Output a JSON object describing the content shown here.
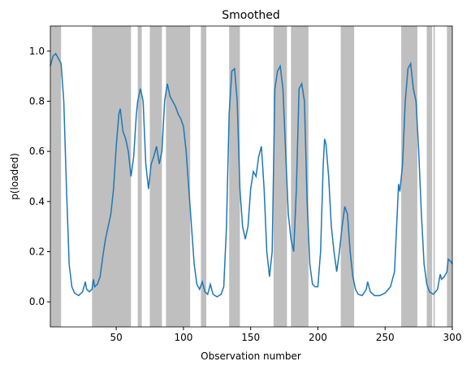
{
  "chart_data": {
    "type": "line",
    "title": "Smoothed",
    "xlabel": "Observation number",
    "ylabel": "p(loaded)",
    "xlim": [
      1,
      300
    ],
    "ylim": [
      -0.1,
      1.1
    ],
    "xticks": [
      50,
      100,
      150,
      200,
      250,
      300
    ],
    "yticks": [
      {
        "value": 0,
        "label": "0.0"
      },
      0.2,
      0.4,
      0.6,
      0.8,
      {
        "value": 1,
        "label": "1.0"
      }
    ],
    "span_color": "#bfbfbf",
    "spans": [
      [
        1,
        9
      ],
      [
        32,
        61
      ],
      [
        66,
        69
      ],
      [
        75,
        84
      ],
      [
        87,
        105
      ],
      [
        113,
        117
      ],
      [
        134,
        142
      ],
      [
        167,
        177
      ],
      [
        180,
        193
      ],
      [
        217,
        227
      ],
      [
        262,
        274
      ],
      [
        281,
        285
      ],
      [
        286,
        287
      ],
      [
        296,
        300
      ]
    ],
    "series": [
      {
        "color": "#1f77b4",
        "x": [
          1,
          3,
          5,
          7,
          9,
          11,
          13,
          15,
          17,
          19,
          22,
          25,
          27,
          28,
          30,
          32,
          33,
          34,
          36,
          38,
          40,
          42,
          44,
          46,
          48,
          50,
          52,
          53,
          55,
          57,
          59,
          61,
          63,
          65,
          66,
          68,
          70,
          72,
          74,
          76,
          78,
          80,
          82,
          84,
          86,
          88,
          90,
          92,
          94,
          96,
          98,
          100,
          102,
          104,
          106,
          108,
          110,
          112,
          114,
          116,
          118,
          120,
          122,
          125,
          128,
          130,
          132,
          134,
          136,
          138,
          140,
          142,
          144,
          146,
          148,
          150,
          152,
          154,
          156,
          158,
          160,
          162,
          164,
          166,
          168,
          170,
          172,
          174,
          176,
          178,
          180,
          182,
          184,
          186,
          188,
          190,
          192,
          194,
          196,
          198,
          200,
          202,
          204,
          205,
          206,
          208,
          210,
          212,
          214,
          216,
          218,
          220,
          222,
          224,
          226,
          228,
          230,
          233,
          236,
          237,
          239,
          242,
          246,
          250,
          254,
          257,
          259,
          260,
          261,
          263,
          265,
          267,
          269,
          271,
          273,
          275,
          277,
          279,
          281,
          283,
          286,
          289,
          291,
          292,
          294,
          296,
          297,
          299,
          300
        ],
        "values": [
          0.94,
          0.98,
          0.99,
          0.97,
          0.95,
          0.8,
          0.45,
          0.15,
          0.06,
          0.035,
          0.025,
          0.04,
          0.08,
          0.05,
          0.04,
          0.05,
          0.09,
          0.06,
          0.07,
          0.1,
          0.18,
          0.25,
          0.3,
          0.35,
          0.45,
          0.62,
          0.75,
          0.77,
          0.68,
          0.65,
          0.6,
          0.5,
          0.58,
          0.75,
          0.8,
          0.85,
          0.8,
          0.55,
          0.45,
          0.55,
          0.58,
          0.62,
          0.55,
          0.6,
          0.8,
          0.87,
          0.82,
          0.8,
          0.78,
          0.75,
          0.73,
          0.7,
          0.6,
          0.45,
          0.3,
          0.15,
          0.07,
          0.05,
          0.08,
          0.04,
          0.03,
          0.07,
          0.03,
          0.02,
          0.03,
          0.06,
          0.3,
          0.75,
          0.92,
          0.93,
          0.8,
          0.45,
          0.3,
          0.25,
          0.3,
          0.45,
          0.52,
          0.5,
          0.58,
          0.62,
          0.45,
          0.2,
          0.1,
          0.2,
          0.85,
          0.92,
          0.94,
          0.85,
          0.6,
          0.35,
          0.25,
          0.2,
          0.45,
          0.85,
          0.87,
          0.8,
          0.4,
          0.15,
          0.07,
          0.06,
          0.06,
          0.2,
          0.55,
          0.65,
          0.63,
          0.5,
          0.3,
          0.2,
          0.12,
          0.2,
          0.3,
          0.38,
          0.35,
          0.2,
          0.1,
          0.05,
          0.03,
          0.025,
          0.05,
          0.08,
          0.04,
          0.025,
          0.025,
          0.035,
          0.06,
          0.12,
          0.35,
          0.47,
          0.44,
          0.55,
          0.8,
          0.93,
          0.95,
          0.85,
          0.8,
          0.6,
          0.35,
          0.15,
          0.07,
          0.04,
          0.03,
          0.05,
          0.11,
          0.09,
          0.1,
          0.12,
          0.17,
          0.16,
          0.15
        ]
      }
    ]
  }
}
